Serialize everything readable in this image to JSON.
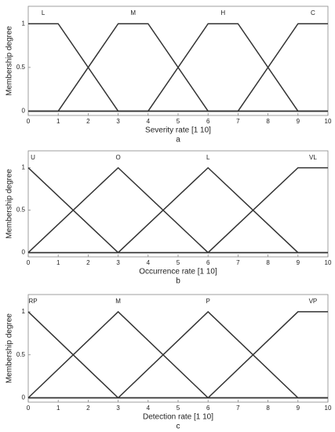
{
  "chart_data": [
    {
      "type": "line",
      "caption": "a",
      "xlabel": "Severity rate [1 10]",
      "ylabel": "Membership degree",
      "xlim": [
        0,
        10
      ],
      "xticks": [
        0,
        1,
        2,
        3,
        4,
        5,
        6,
        7,
        8,
        9,
        10
      ],
      "ylim": [
        -0.05,
        1.2
      ],
      "yticks": [
        0,
        0.5,
        1
      ],
      "series": [
        {
          "name": "L",
          "color": "#333333",
          "x": [
            0,
            1,
            3,
            10
          ],
          "values": [
            1,
            1,
            0,
            0
          ]
        },
        {
          "name": "M",
          "color": "#333333",
          "x": [
            0,
            1,
            3,
            4,
            6,
            10
          ],
          "values": [
            0,
            0,
            1,
            1,
            0,
            0
          ]
        },
        {
          "name": "H",
          "color": "#333333",
          "x": [
            0,
            4,
            6,
            7,
            9,
            10
          ],
          "values": [
            0,
            0,
            1,
            1,
            0,
            0
          ]
        },
        {
          "name": "C",
          "color": "#333333",
          "x": [
            0,
            7,
            9,
            10
          ],
          "values": [
            0,
            0,
            1,
            1
          ]
        }
      ]
    },
    {
      "type": "line",
      "caption": "b",
      "xlabel": "Occurrence rate [1 10]",
      "ylabel": "Membership degree",
      "xlim": [
        0,
        10
      ],
      "xticks": [
        0,
        1,
        2,
        3,
        4,
        5,
        6,
        7,
        8,
        9,
        10
      ],
      "ylim": [
        -0.05,
        1.2
      ],
      "yticks": [
        0,
        0.5,
        1
      ],
      "series": [
        {
          "name": "U",
          "color": "#333333",
          "x": [
            0,
            3,
            10
          ],
          "values": [
            1,
            0,
            0
          ]
        },
        {
          "name": "O",
          "color": "#333333",
          "x": [
            0,
            3,
            6,
            10
          ],
          "values": [
            0,
            1,
            0,
            0
          ]
        },
        {
          "name": "L",
          "color": "#333333",
          "x": [
            0,
            3,
            6,
            9,
            10
          ],
          "values": [
            0,
            0,
            1,
            0,
            0
          ]
        },
        {
          "name": "VL",
          "color": "#333333",
          "x": [
            0,
            6,
            9,
            10
          ],
          "values": [
            0,
            0,
            1,
            1
          ]
        }
      ]
    },
    {
      "type": "line",
      "caption": "c",
      "xlabel": "Detection rate [1 10]",
      "ylabel": "Membership degree",
      "xlim": [
        0,
        10
      ],
      "xticks": [
        0,
        1,
        2,
        3,
        4,
        5,
        6,
        7,
        8,
        9,
        10
      ],
      "ylim": [
        -0.05,
        1.2
      ],
      "yticks": [
        0,
        0.5,
        1
      ],
      "series": [
        {
          "name": "RP",
          "color": "#333333",
          "x": [
            0,
            3,
            10
          ],
          "values": [
            1,
            0,
            0
          ]
        },
        {
          "name": "M",
          "color": "#333333",
          "x": [
            0,
            3,
            6,
            10
          ],
          "values": [
            0,
            1,
            0,
            0
          ]
        },
        {
          "name": "P",
          "color": "#333333",
          "x": [
            0,
            3,
            6,
            9,
            10
          ],
          "values": [
            0,
            0,
            1,
            0,
            0
          ]
        },
        {
          "name": "VP",
          "color": "#333333",
          "x": [
            0,
            6,
            9,
            10
          ],
          "values": [
            0,
            0,
            1,
            1
          ]
        }
      ]
    }
  ]
}
